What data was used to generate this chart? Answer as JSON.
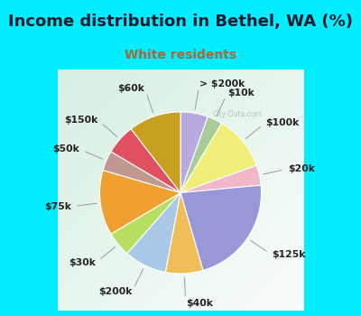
{
  "title": "Income distribution in Bethel, WA (%)",
  "subtitle": "White residents",
  "title_color": "#1a1a2e",
  "subtitle_color": "#aa6633",
  "bg_cyan": "#00eeff",
  "watermark": "City-Data.com",
  "labels": [
    "> $200k",
    "$10k",
    "$100k",
    "$20k",
    "$125k",
    "$40k",
    "$200k",
    "$30k",
    "$75k",
    "$50k",
    "$150k",
    "$60k"
  ],
  "values": [
    5.5,
    3.0,
    11.0,
    4.0,
    22.0,
    7.5,
    8.5,
    5.0,
    13.0,
    4.0,
    6.0,
    10.5
  ],
  "colors": [
    "#b8aae0",
    "#a8cc98",
    "#f0ee78",
    "#f0b8c8",
    "#9898d8",
    "#f0be58",
    "#a8c8e8",
    "#b8e060",
    "#f0a030",
    "#c09890",
    "#e05060",
    "#c8a020"
  ],
  "title_fontsize": 13,
  "subtitle_fontsize": 10,
  "label_fontsize": 7.8
}
